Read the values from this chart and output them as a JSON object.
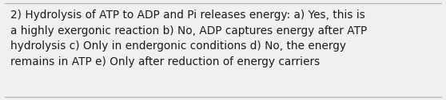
{
  "text": "2) Hydrolysis of ATP to ADP and Pi releases energy: a) Yes, this is\na highly exergonic reaction b) No, ADP captures energy after ATP\nhydrolysis c) Only in endergonic conditions d) No, the energy\nremains in ATP e) Only after reduction of energy carriers",
  "background_color": "#f0f0f0",
  "text_color": "#1a1a1a",
  "font_size": 9.8,
  "border_color": "#b0b0b0",
  "fig_width": 5.58,
  "fig_height": 1.26
}
